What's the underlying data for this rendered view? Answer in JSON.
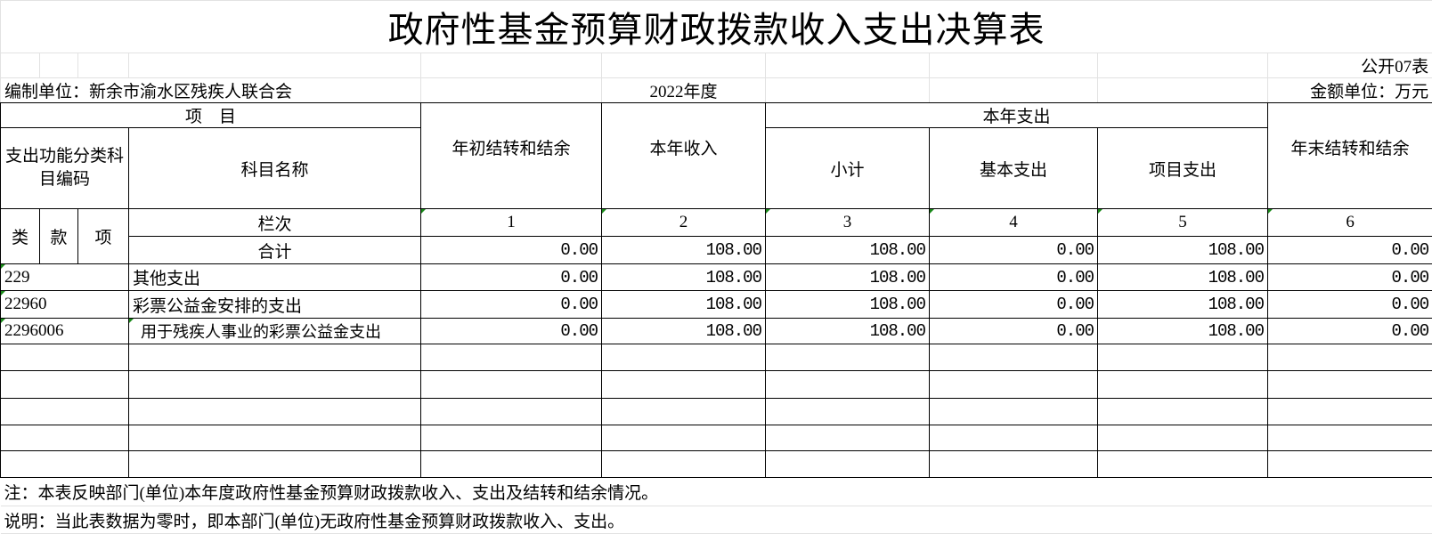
{
  "title": "政府性基金预算财政拨款收入支出决算表",
  "form_no": "公开07表",
  "unit_label": "编制单位：新余市渝水区残疾人联合会",
  "year": "2022年度",
  "amount_unit": "金额单位：万元",
  "header": {
    "project": "项    目",
    "code": "支出功能分类科目编码",
    "subject_name": "科目名称",
    "opening_balance": "年初结转和结余",
    "income": "本年收入",
    "expense_group": "本年支出",
    "subtotal": "小计",
    "basic": "基本支出",
    "project_exp": "项目支出",
    "closing_balance": "年末结转和结余",
    "lei": "类",
    "kuan": "款",
    "xiang": "项",
    "column_seq": "栏次",
    "col_numbers": [
      "1",
      "2",
      "3",
      "4",
      "5",
      "6"
    ]
  },
  "total_row": {
    "label": "合计",
    "values": [
      "0.00",
      "108.00",
      "108.00",
      "0.00",
      "108.00",
      "0.00"
    ]
  },
  "rows": [
    {
      "code": "229",
      "name": "其他支出",
      "values": [
        "0.00",
        "108.00",
        "108.00",
        "0.00",
        "108.00",
        "0.00"
      ]
    },
    {
      "code": "22960",
      "name": "彩票公益金安排的支出",
      "values": [
        "0.00",
        "108.00",
        "108.00",
        "0.00",
        "108.00",
        "0.00"
      ]
    },
    {
      "code": "2296006",
      "name": "  用于残疾人事业的彩票公益金支出",
      "values": [
        "0.00",
        "108.00",
        "108.00",
        "0.00",
        "108.00",
        "0.00"
      ]
    }
  ],
  "notes": [
    "注：本表反映部门(单位)本年度政府性基金预算财政拨款收入、支出及结转和结余情况。",
    "说明：当此表数据为零时，即本部门(单位)无政府性基金预算财政拨款收入、支出。"
  ]
}
